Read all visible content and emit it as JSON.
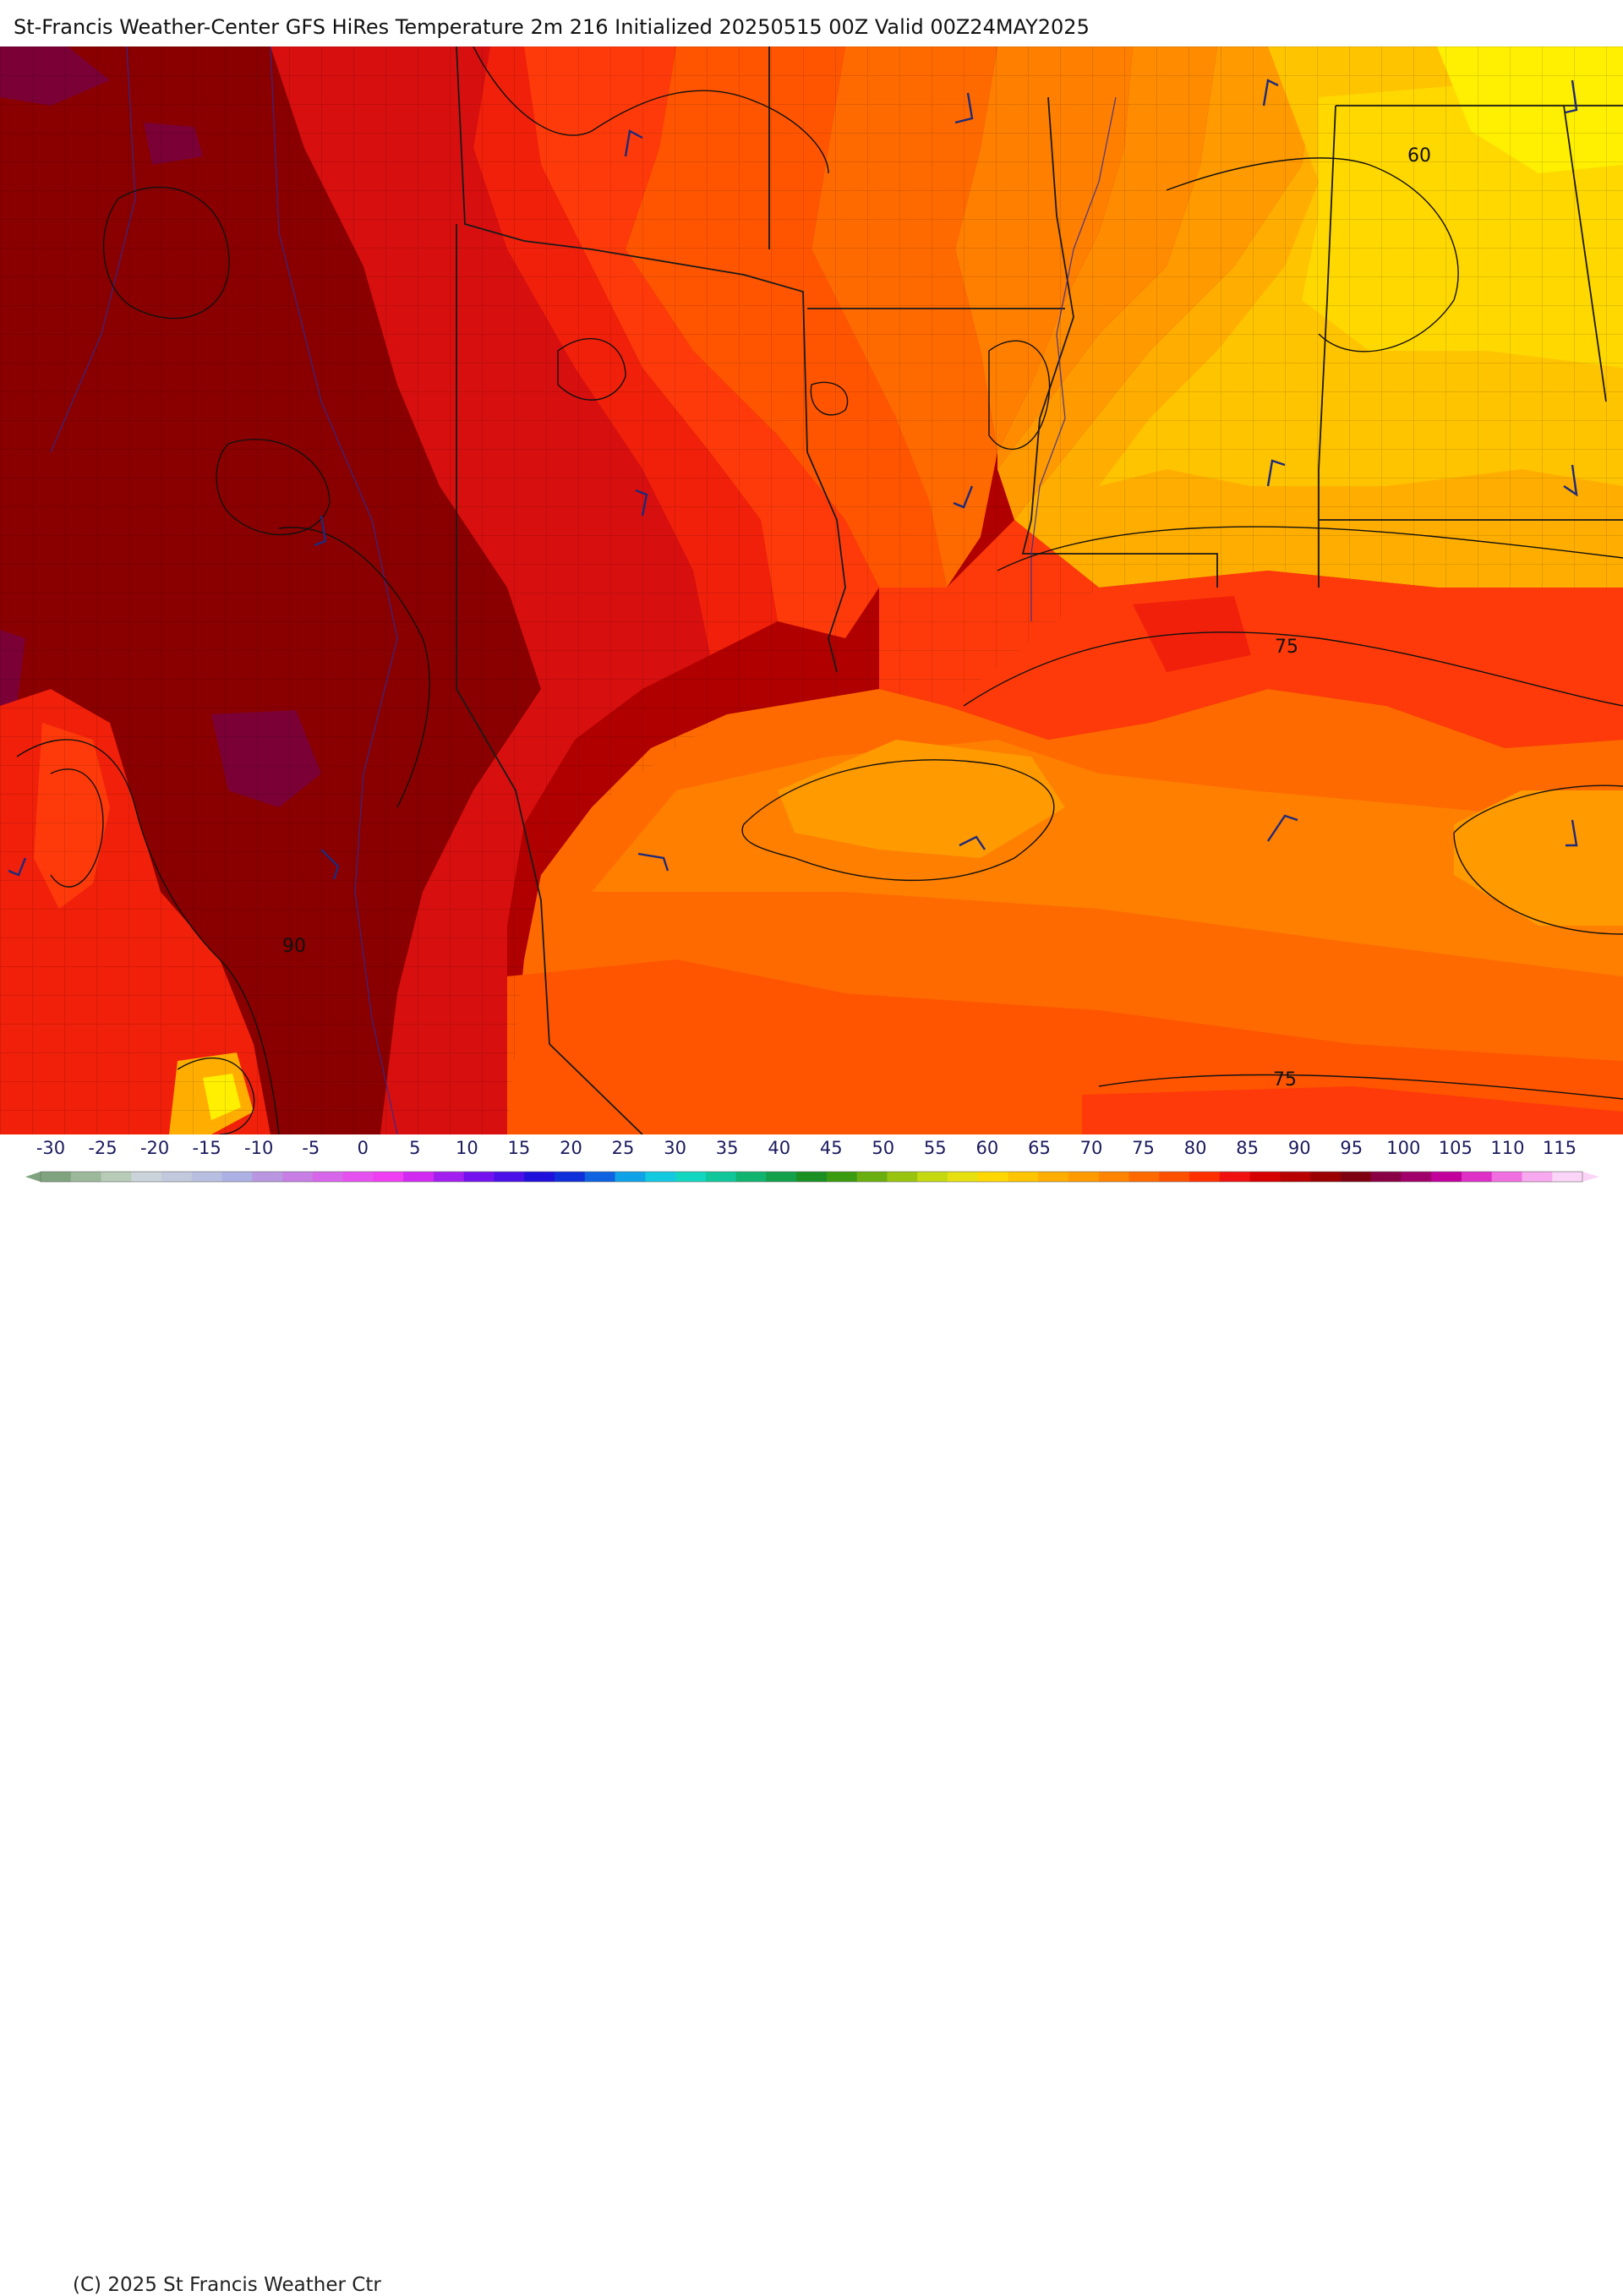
{
  "header": {
    "title": "St-Francis Weather-Center GFS HiRes Temperature 2m  216 Initialized 20250515 00Z Valid 00Z24MAY2025"
  },
  "map": {
    "contour_labels": [
      "90",
      "60",
      "75",
      "75"
    ],
    "colors": {
      "t115": "#7a0036",
      "t95": "#8a0000",
      "t90": "#b00000",
      "t85": "#d70f0f",
      "t82": "#f0200b",
      "t80": "#ff3a0a",
      "t78": "#ff5500",
      "t75": "#ff6a00",
      "t72": "#ff7f00",
      "t70": "#ff8c00",
      "t68": "#ff9a00",
      "t65": "#ffae00",
      "t62": "#ffc400",
      "t60": "#ffd800",
      "t58": "#ffef00",
      "border": "#1a1a1a",
      "county": "#5a3a00",
      "river": "#2a2a9a",
      "barb": "#1e2a7a"
    }
  },
  "legend": {
    "ticks": [
      "-30",
      "-25",
      "-20",
      "-15",
      "-10",
      "-5",
      "0",
      "5",
      "10",
      "15",
      "20",
      "25",
      "30",
      "35",
      "40",
      "45",
      "50",
      "55",
      "60",
      "65",
      "70",
      "75",
      "80",
      "85",
      "90",
      "95",
      "100",
      "105",
      "110",
      "115"
    ],
    "colors": [
      "#7fa37f",
      "#9bb89b",
      "#b7cbb7",
      "#c9d3d9",
      "#c2c9dd",
      "#b8bee0",
      "#adb0e3",
      "#b896e0",
      "#c77ee5",
      "#d866ea",
      "#e652ef",
      "#f03ff3",
      "#d12bf2",
      "#a21ff0",
      "#7412ef",
      "#4b10e8",
      "#2010dc",
      "#0f2fd8",
      "#0f62e0",
      "#0fa2e6",
      "#12c9e0",
      "#13d6c0",
      "#10c79b",
      "#10b46e",
      "#12a04a",
      "#1a8f22",
      "#3a9a10",
      "#6aae10",
      "#98c410",
      "#c4d910",
      "#e6e010",
      "#ffd800",
      "#ffc400",
      "#ffae00",
      "#ff9a00",
      "#ff8400",
      "#ff6a00",
      "#ff5000",
      "#ff3000",
      "#f01010",
      "#d70000",
      "#b80000",
      "#9a0000",
      "#7e0010",
      "#8a0044",
      "#a1006a",
      "#c2009c",
      "#de2fc6",
      "#ef6fe0",
      "#f7a8ef",
      "#fbd5f7"
    ],
    "copyright": "(C) 2025 St Francis Weather Ctr"
  }
}
